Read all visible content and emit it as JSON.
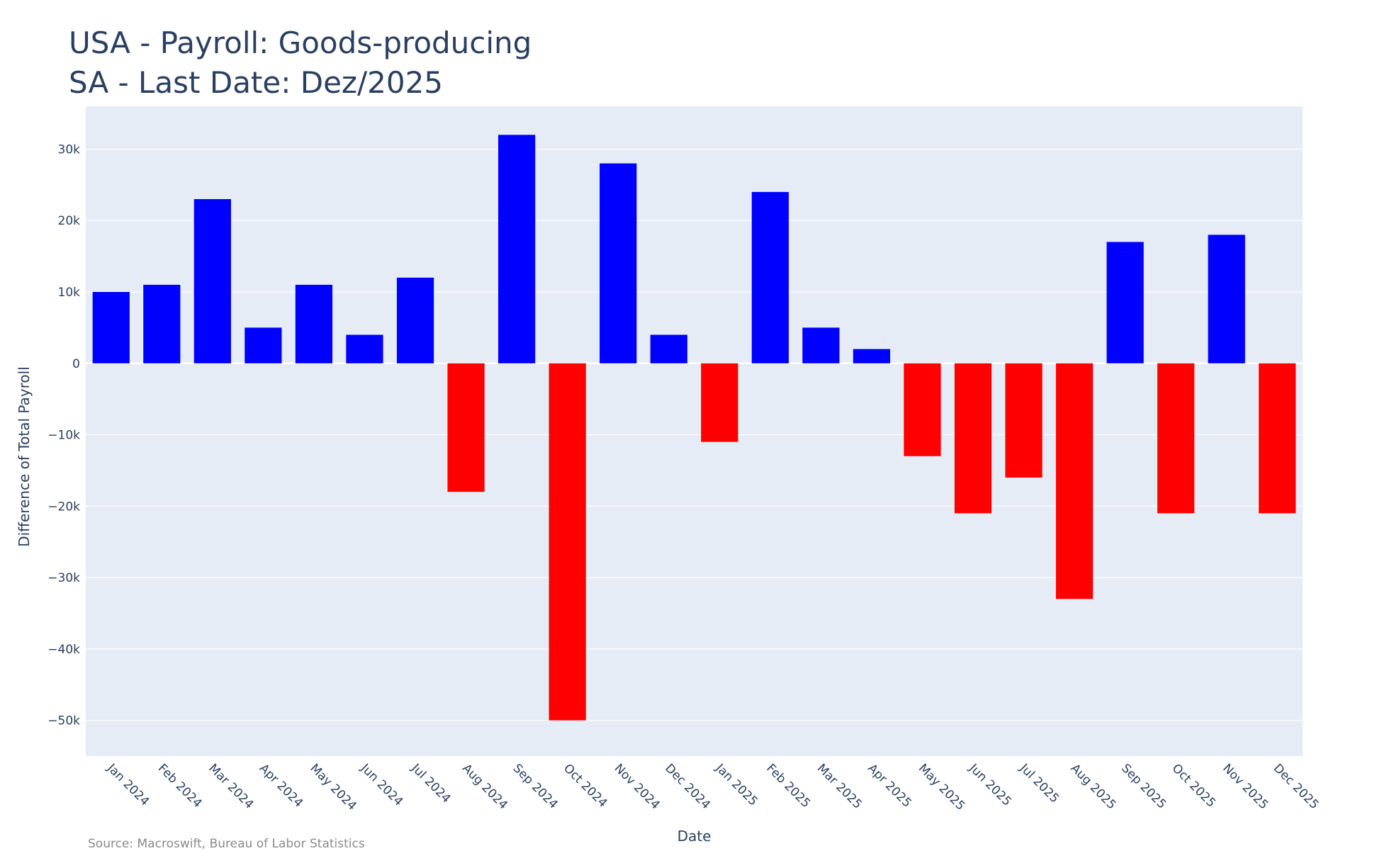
{
  "chart_data": {
    "type": "bar",
    "title": [
      "USA - Payroll: Goods-producing",
      "SA - Last Date: Dez/2025"
    ],
    "xlabel": "Date",
    "ylabel": "Difference of Total Payroll",
    "ylim": [
      -55000,
      36000
    ],
    "yticks": [
      30000,
      20000,
      10000,
      0,
      -10000,
      -20000,
      -30000,
      -40000,
      -50000
    ],
    "ytick_labels": [
      "30k",
      "20k",
      "10k",
      "0",
      "−10k",
      "−20k",
      "−30k",
      "−40k",
      "−50k"
    ],
    "grid": true,
    "categories": [
      "Jan 2024",
      "Feb 2024",
      "Mar 2024",
      "Apr 2024",
      "May 2024",
      "Jun 2024",
      "Jul 2024",
      "Aug 2024",
      "Sep 2024",
      "Oct 2024",
      "Nov 2024",
      "Dec 2024",
      "Jan 2025",
      "Feb 2025",
      "Mar 2025",
      "Apr 2025",
      "May 2025",
      "Jun 2025",
      "Jul 2025",
      "Aug 2025",
      "Sep 2025",
      "Oct 2025",
      "Nov 2025",
      "Dec 2025"
    ],
    "values": [
      10000,
      11000,
      23000,
      5000,
      11000,
      4000,
      12000,
      -18000,
      32000,
      -50000,
      28000,
      4000,
      -11000,
      24000,
      5000,
      2000,
      -13000,
      -21000,
      -16000,
      -33000,
      17000,
      -21000,
      18000,
      -21000
    ],
    "colors": {
      "positive": "#0000ff",
      "negative": "#ff0000",
      "plot_bg": "#e5ecf6",
      "grid": "#ffffff",
      "text": "#2a3f5f"
    }
  },
  "source": "Source: Macroswift, Bureau of Labor Statistics"
}
